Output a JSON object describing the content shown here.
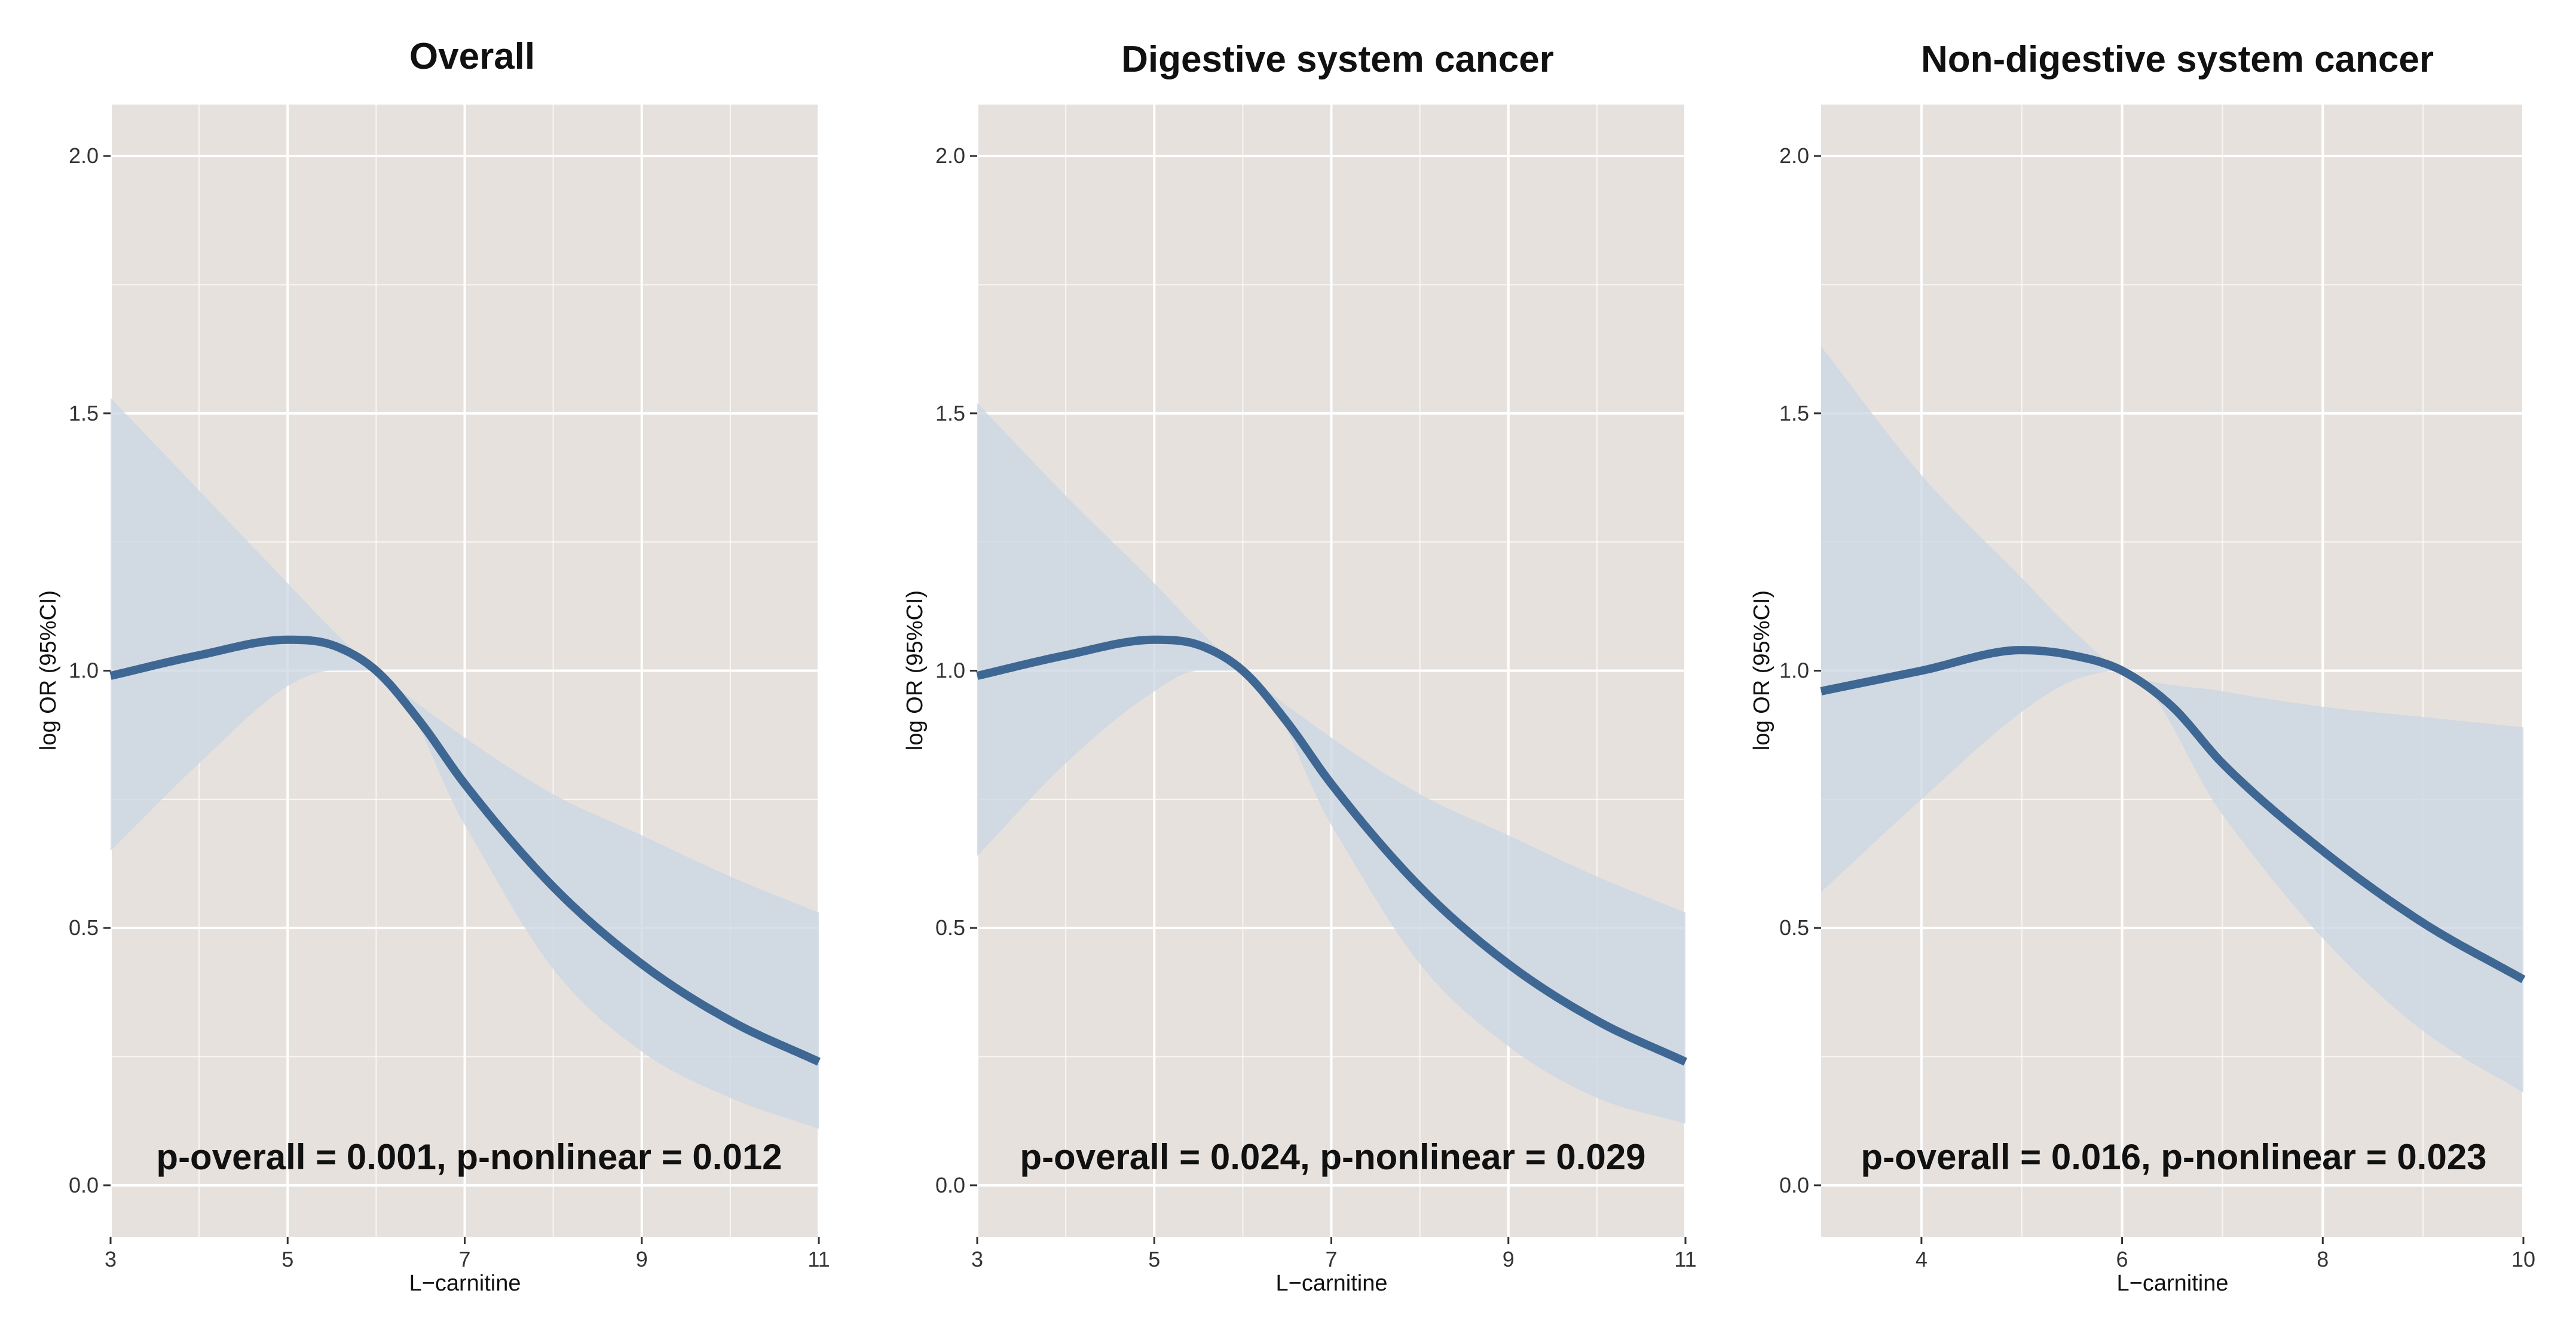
{
  "colors": {
    "panel_bg": "#e6e1dd",
    "grid": "#ffffff",
    "line": "#3f6794",
    "ribbon": "#c9d5e3"
  },
  "chart_data": [
    {
      "type": "line",
      "title": "Overall",
      "xlabel": "L−carnitine",
      "ylabel": "log OR (95%CI)",
      "xlim": [
        3,
        11
      ],
      "ylim": [
        -0.1,
        2.1
      ],
      "xticks": [
        3,
        5,
        7,
        9,
        11
      ],
      "xtick_labels": [
        "3",
        "5",
        "7",
        "9",
        "11"
      ],
      "yticks": [
        0,
        0.5,
        1,
        1.5,
        2
      ],
      "ytick_labels": [
        "0.0",
        "0.5",
        "1.0",
        "1.5",
        "2.0"
      ],
      "annotation": "p-overall = 0.001, p-nonlinear = 0.012",
      "series": [
        {
          "name": "log OR",
          "x": [
            3,
            4,
            5,
            5.5,
            6,
            6.5,
            7,
            8,
            9,
            10,
            11
          ],
          "y": [
            0.99,
            1.03,
            1.06,
            1.05,
            1.0,
            0.9,
            0.78,
            0.58,
            0.43,
            0.32,
            0.24
          ]
        },
        {
          "name": "upper 95% CI",
          "x": [
            3,
            4,
            5,
            5.5,
            6,
            7,
            8,
            9,
            10,
            11
          ],
          "y": [
            1.53,
            1.35,
            1.17,
            1.08,
            1.0,
            0.87,
            0.76,
            0.68,
            0.6,
            0.53
          ]
        },
        {
          "name": "lower 95% CI",
          "x": [
            3,
            4,
            5,
            5.5,
            6,
            7,
            8,
            9,
            10,
            11
          ],
          "y": [
            0.65,
            0.82,
            0.97,
            1.0,
            1.0,
            0.7,
            0.42,
            0.26,
            0.17,
            0.11
          ]
        }
      ]
    },
    {
      "type": "line",
      "title": "Digestive system cancer",
      "xlabel": "L−carnitine",
      "ylabel": "log OR (95%CI)",
      "xlim": [
        3,
        11
      ],
      "ylim": [
        -0.1,
        2.1
      ],
      "xticks": [
        3,
        5,
        7,
        9,
        11
      ],
      "xtick_labels": [
        "3",
        "5",
        "7",
        "9",
        "11"
      ],
      "yticks": [
        0,
        0.5,
        1,
        1.5,
        2
      ],
      "ytick_labels": [
        "0.0",
        "0.5",
        "1.0",
        "1.5",
        "2.0"
      ],
      "annotation": "p-overall = 0.024, p-nonlinear = 0.029",
      "series": [
        {
          "name": "log OR",
          "x": [
            3,
            4,
            5,
            5.5,
            6,
            6.5,
            7,
            8,
            9,
            10,
            11
          ],
          "y": [
            0.99,
            1.03,
            1.06,
            1.05,
            1.0,
            0.9,
            0.78,
            0.58,
            0.43,
            0.32,
            0.24
          ]
        },
        {
          "name": "upper 95% CI",
          "x": [
            3,
            4,
            5,
            5.5,
            6,
            7,
            8,
            9,
            10,
            11
          ],
          "y": [
            1.52,
            1.34,
            1.17,
            1.08,
            1.0,
            0.87,
            0.76,
            0.68,
            0.6,
            0.53
          ]
        },
        {
          "name": "lower 95% CI",
          "x": [
            3,
            4,
            5,
            5.5,
            6,
            7,
            8,
            9,
            10,
            11
          ],
          "y": [
            0.64,
            0.82,
            0.96,
            1.0,
            1.0,
            0.7,
            0.43,
            0.27,
            0.17,
            0.12
          ]
        }
      ]
    },
    {
      "type": "line",
      "title": "Non-digestive system cancer",
      "xlabel": "L−carnitine",
      "ylabel": "log OR (95%CI)",
      "xlim": [
        3,
        10
      ],
      "ylim": [
        -0.1,
        2.1
      ],
      "xticks": [
        4,
        6,
        8,
        10
      ],
      "xtick_labels": [
        "4",
        "6",
        "8",
        "10"
      ],
      "yticks": [
        0,
        0.5,
        1,
        1.5,
        2
      ],
      "ytick_labels": [
        "0.0",
        "0.5",
        "1.0",
        "1.5",
        "2.0"
      ],
      "annotation": "p-overall = 0.016, p-nonlinear = 0.023",
      "series": [
        {
          "name": "log OR",
          "x": [
            3,
            4,
            5,
            5.5,
            6,
            6.5,
            7,
            8,
            9,
            10
          ],
          "y": [
            0.96,
            1.0,
            1.04,
            1.03,
            1.0,
            0.93,
            0.82,
            0.65,
            0.51,
            0.4
          ]
        },
        {
          "name": "upper 95% CI",
          "x": [
            3,
            4,
            5,
            5.5,
            6,
            7,
            8,
            9,
            10
          ],
          "y": [
            1.63,
            1.38,
            1.18,
            1.08,
            1.0,
            0.96,
            0.93,
            0.91,
            0.89
          ]
        },
        {
          "name": "lower 95% CI",
          "x": [
            3,
            4,
            5,
            5.5,
            6,
            7,
            8,
            9,
            10
          ],
          "y": [
            0.57,
            0.75,
            0.92,
            0.98,
            1.0,
            0.72,
            0.48,
            0.3,
            0.18
          ]
        }
      ]
    }
  ]
}
